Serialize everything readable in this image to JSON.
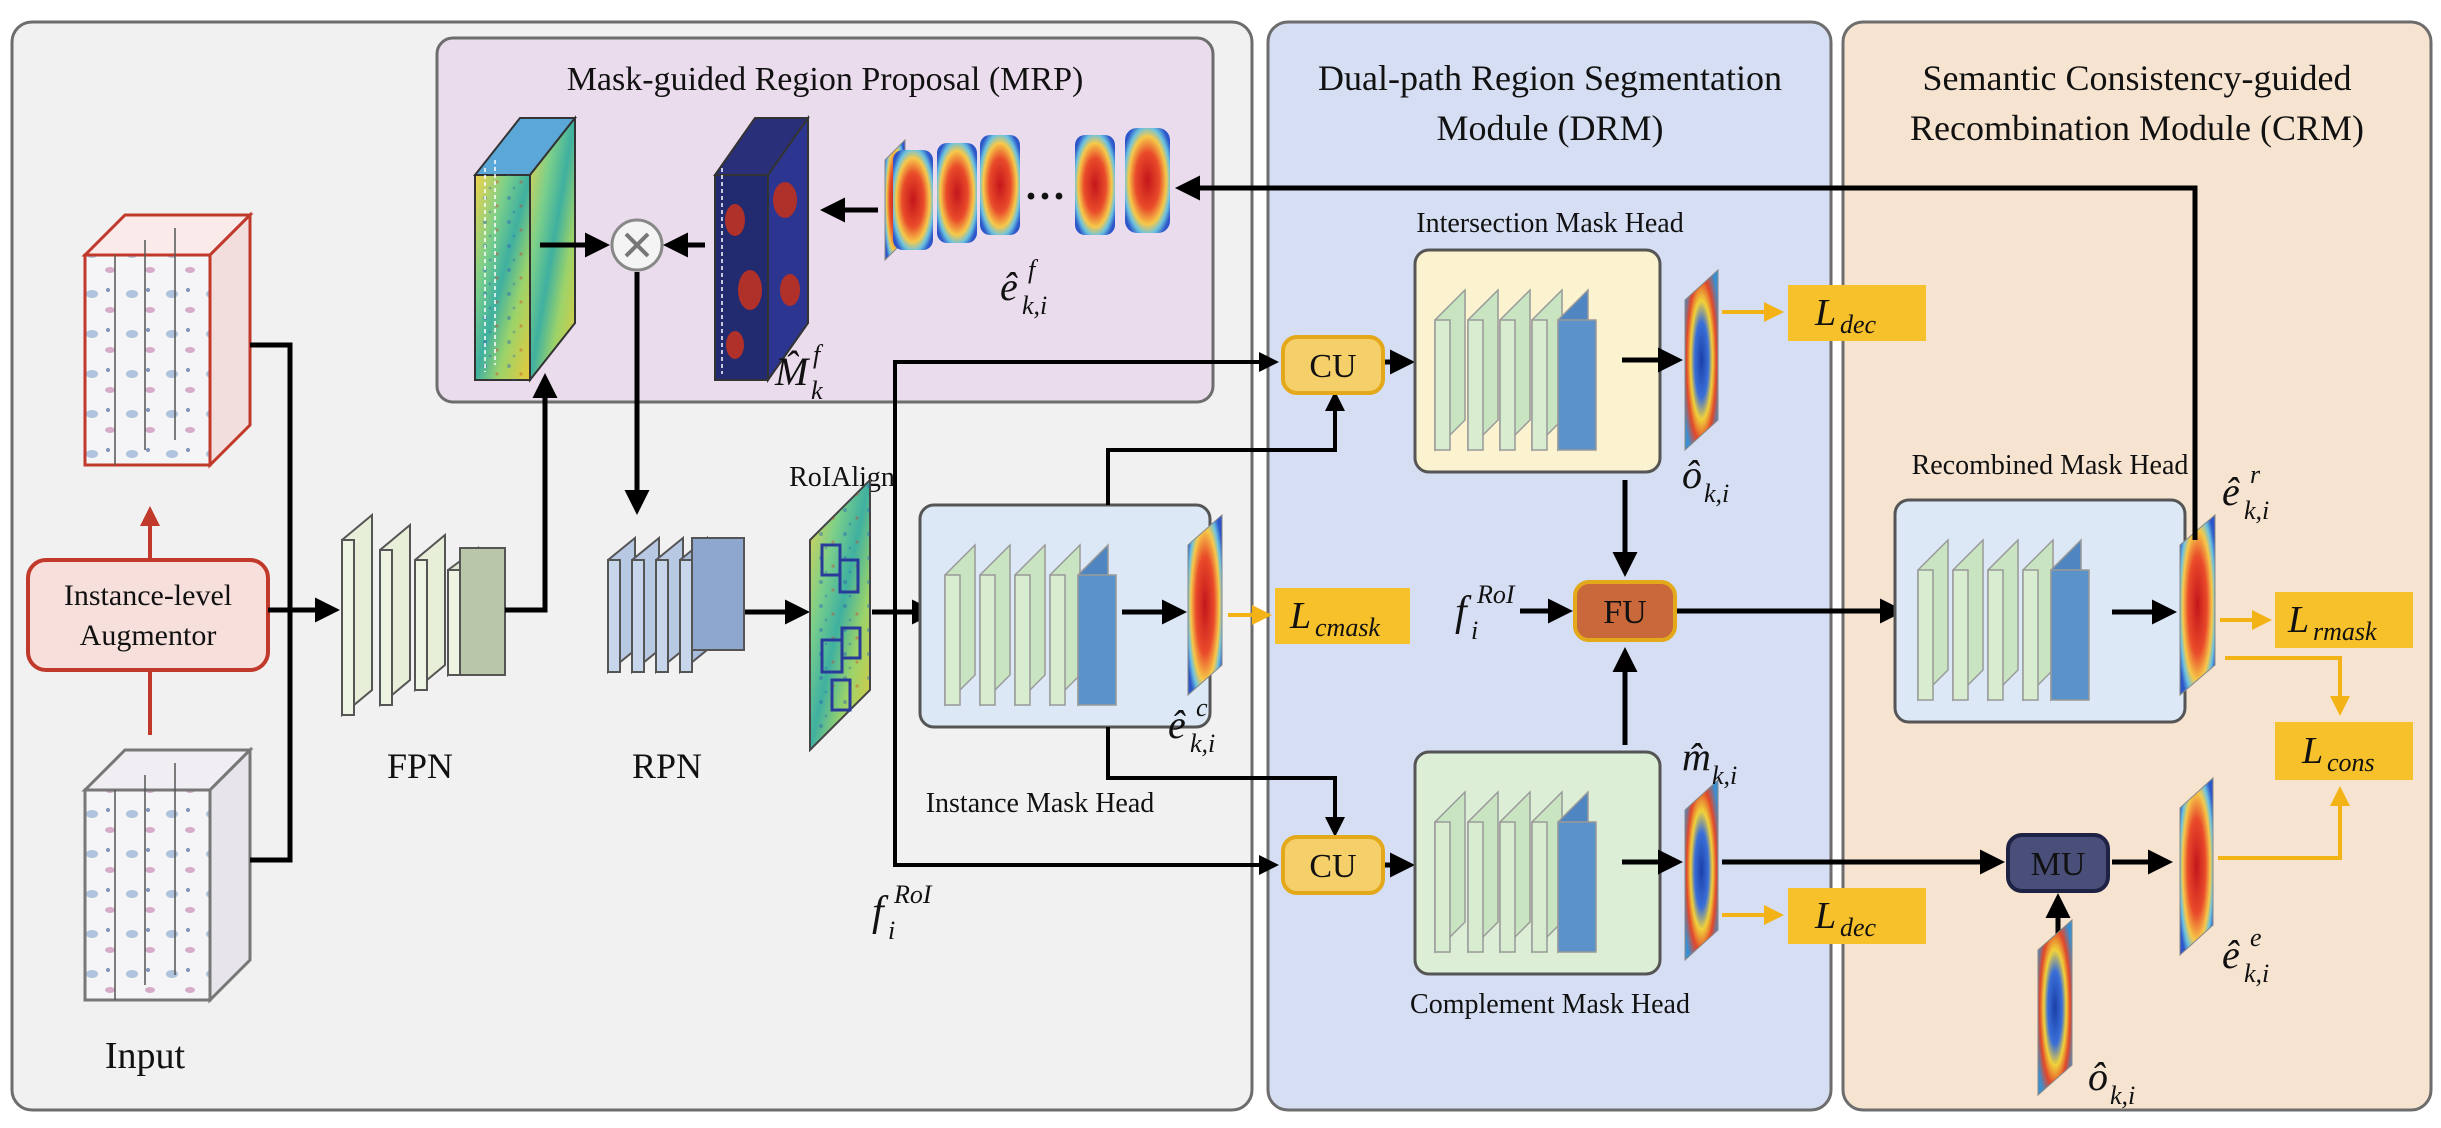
{
  "colors": {
    "panel_left": "#f1f1f1",
    "panel_mrp": "#eadcec",
    "panel_drm": "#d6def3",
    "panel_crm": "#f6e4d1",
    "arrow": "#000000",
    "loss_arrow": "#f3b316",
    "loss_box": "#f6c12b",
    "cu_box": "#f5cf6a",
    "fu_box": "#c8683b",
    "mu_box": "#2b2f57",
    "augmentor_border": "#c0392b",
    "head_layers": "#c9e4c0",
    "head_last": "#5b92c9",
    "fpn": "#dfe9cf",
    "rpn": "#a8bddc"
  },
  "panels": {
    "mrp_title": "Mask-guided Region Proposal (MRP)",
    "drm_title_1": "Dual-path Region Segmentation",
    "drm_title_2": "Module (DRM)",
    "crm_title_1": "Semantic Consistency-guided",
    "crm_title_2": "Recombination Module (CRM)"
  },
  "labels": {
    "input": "Input",
    "augmentor_1": "Instance-level",
    "augmentor_2": "Augmentor",
    "fpn": "FPN",
    "rpn": "RPN",
    "roialign": "RoIAlign",
    "instance_head": "Instance Mask Head",
    "intersection_head": "Intersection Mask Head",
    "complement_head": "Complement Mask Head",
    "recombined_head": "Recombined Mask Head",
    "cu": "CU",
    "fu": "FU",
    "mu": "MU",
    "dots": "···"
  },
  "math": {
    "e_f": {
      "base": "ê",
      "sup": "f",
      "sub": "k,i"
    },
    "m_f": {
      "base": "M̂",
      "sup": "f",
      "sub": "k"
    },
    "e_c": {
      "base": "ê",
      "sup": "c",
      "sub": "k,i"
    },
    "o_hat": {
      "base": "ô",
      "sub": "k,i"
    },
    "m_hat": {
      "base": "m̂",
      "sub": "k,i"
    },
    "e_r": {
      "base": "ê",
      "sup": "r",
      "sub": "k,i"
    },
    "e_e": {
      "base": "ê",
      "sup": "e",
      "sub": "k,i"
    },
    "o_hat_2": {
      "base": "ô",
      "sub": "k,i"
    },
    "f_roi_1": {
      "base": "f",
      "sup": "RoI",
      "sub": "i"
    },
    "f_roi_2": {
      "base": "f",
      "sup": "RoI",
      "sub": "i"
    }
  },
  "losses": {
    "dec_top": {
      "base": "L",
      "sub": "dec"
    },
    "cmask": {
      "base": "L",
      "sub": "cmask"
    },
    "dec_bottom": {
      "base": "L",
      "sub": "dec"
    },
    "rmask": {
      "base": "L",
      "sub": "rmask"
    },
    "cons": {
      "base": "L",
      "sub": "cons"
    }
  }
}
